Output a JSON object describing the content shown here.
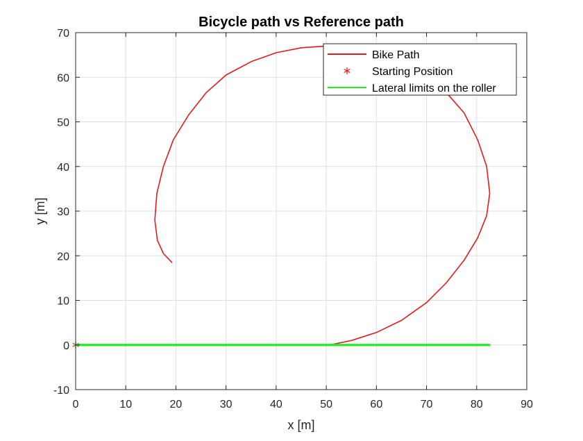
{
  "chart_data": {
    "type": "line",
    "title": "Bicycle path vs Reference path",
    "xlabel": "x [m]",
    "ylabel": "y [m]",
    "xlim": [
      0,
      90
    ],
    "ylim": [
      -10,
      70
    ],
    "xticks": [
      "0",
      "10",
      "20",
      "30",
      "40",
      "50",
      "60",
      "70",
      "80",
      "90"
    ],
    "yticks": [
      "-10",
      "0",
      "10",
      "20",
      "30",
      "40",
      "50",
      "60",
      "70"
    ],
    "grid": true,
    "legend_position": "top-right",
    "series": [
      {
        "name": "Bike Path",
        "color": "#e31a1c",
        "marker": "line",
        "x": [
          0,
          10,
          20,
          30,
          40,
          50,
          51.5,
          55,
          60,
          65,
          70,
          74,
          77.5,
          80.2,
          82,
          82.6,
          82,
          80.2,
          77.5,
          74,
          70,
          65,
          60,
          55,
          50,
          45,
          40,
          35,
          30,
          26,
          22.5,
          19.5,
          17.5,
          16.2,
          15.8,
          16.3,
          17.5,
          19.2
        ],
        "y": [
          0,
          0,
          0,
          0,
          0,
          0,
          0.2,
          1,
          2.8,
          5.5,
          9.5,
          14,
          19,
          24,
          29,
          34,
          40,
          46,
          52,
          56.5,
          60.5,
          64,
          66.2,
          67,
          67,
          66.6,
          65.5,
          63.5,
          60.5,
          56.5,
          51.5,
          46,
          40,
          34,
          28,
          23.5,
          20.5,
          18.5
        ]
      },
      {
        "name": "Starting Position",
        "color": "#e31a1c",
        "marker": "asterisk",
        "x": [
          0
        ],
        "y": [
          0
        ]
      },
      {
        "name": "Lateral limits on the roller",
        "color": "#22ee22",
        "marker": "line",
        "x": [
          0,
          82.6
        ],
        "y": [
          0.1,
          0.1
        ],
        "x2": [
          0,
          82.6
        ],
        "y2": [
          -0.1,
          -0.1
        ]
      }
    ]
  }
}
